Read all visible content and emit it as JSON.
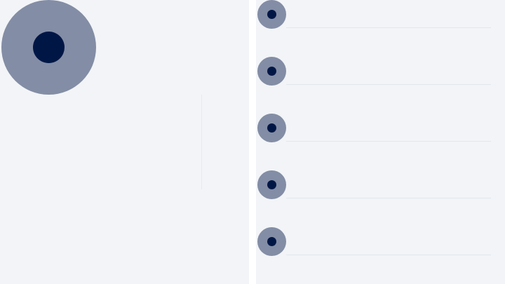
{
  "colors": {
    "panel_background": "#f2f4f7",
    "gutter": "#ffffff",
    "avatar_ring": "#838da5",
    "avatar_dot": "#001746",
    "divider": "#e3e6ec"
  },
  "left_panel": {
    "avatar_icon": "user-avatar-icon"
  },
  "right_panel": {
    "items": [
      {
        "avatar_icon": "user-avatar-icon"
      },
      {
        "avatar_icon": "user-avatar-icon"
      },
      {
        "avatar_icon": "user-avatar-icon"
      },
      {
        "avatar_icon": "user-avatar-icon"
      },
      {
        "avatar_icon": "user-avatar-icon"
      }
    ]
  }
}
